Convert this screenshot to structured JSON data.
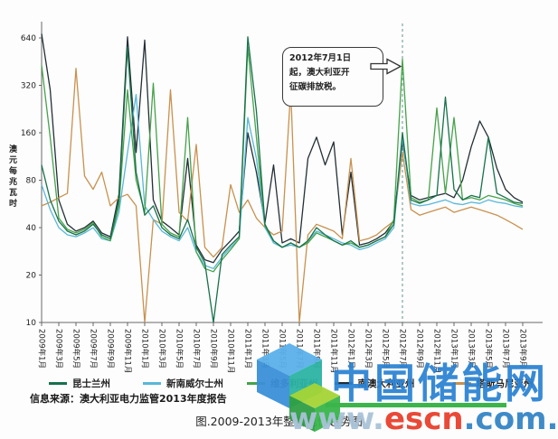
{
  "figure": {
    "y_axis_title": "澳元每兆瓦时",
    "source": "信息来源：澳大利亚电力监管2013年度报告",
    "caption": "图.2009-2013年整售电价趋势图",
    "annotation": {
      "line1": "2012年7月1日",
      "line2": "起，澳大利亚开",
      "line3": "征碳排放税。"
    }
  },
  "legend": {
    "items": [
      {
        "key": "qld",
        "label": "昆士兰州",
        "color": "#17714b"
      },
      {
        "key": "nsw",
        "label": "新南威尔士州",
        "color": "#58b7d8"
      },
      {
        "key": "vic",
        "label": "维多利亚州",
        "color": "#46a24a"
      },
      {
        "key": "sa",
        "label": "南澳大利亚州",
        "color": "#232f36"
      },
      {
        "key": "tas",
        "label": "塔斯马尼亚州",
        "color": "#c8914f"
      }
    ]
  },
  "watermark": {
    "brand": "中国储能网",
    "url_www": "www.",
    "url_escn": "escn",
    "url_tail": ".com.cn",
    "brand_color": "#2a82d2",
    "www_color": "#a9c3d8",
    "escn_color": "#e8402d",
    "tail_color": "#3585c6",
    "underline_color": "#3bb54a"
  },
  "chart_data": {
    "type": "line",
    "title": "2009-2013年整售电价趋势图",
    "ylabel": "澳元每兆瓦时",
    "y_scale": "log2",
    "ylim": [
      10,
      640
    ],
    "y_ticks": [
      10,
      20,
      40,
      80,
      160,
      320,
      640
    ],
    "x_start": "2009-01",
    "x_end": "2013-09",
    "x_interval": "monthly",
    "x_tick_labels": [
      "2009年1月",
      "2009年3月",
      "2009年5月",
      "2009年7月",
      "2009年9月",
      "2009年11月",
      "2010年1月",
      "2010年3月",
      "2010年5月",
      "2010年7月",
      "2010年9月",
      "2010年11月",
      "2011年1月",
      "2011年3月",
      "2011年5月",
      "2011年7月",
      "2011年9月",
      "2011年11月",
      "2012年1月",
      "2012年3月",
      "2012年5月",
      "2012年7月",
      "2012年9月",
      "2012年11月",
      "2013年1月",
      "2013年3月",
      "2013年5月",
      "2013年7月",
      "2013年9月"
    ],
    "event_line": {
      "x": "2012-07",
      "month_index": 42,
      "style": "dashed",
      "color": "#7aa8a2"
    },
    "series": [
      {
        "key": "qld",
        "name": "昆士兰州",
        "color": "#17714b",
        "values": [
          100,
          60,
          44,
          38,
          36,
          38,
          42,
          36,
          34,
          60,
          560,
          90,
          48,
          55,
          40,
          36,
          34,
          45,
          30,
          24,
          10,
          27,
          31,
          35,
          650,
          220,
          42,
          33,
          30,
          32,
          30,
          33,
          40,
          36,
          33,
          31,
          33,
          30,
          31,
          33,
          35,
          42,
          160,
          60,
          57,
          60,
          64,
          270,
          70,
          60,
          64,
          62,
          150,
          66,
          62,
          58,
          57
        ]
      },
      {
        "key": "nsw",
        "name": "新南威尔士州",
        "color": "#58b7d8",
        "values": [
          75,
          52,
          40,
          36,
          35,
          37,
          40,
          34,
          33,
          50,
          120,
          280,
          55,
          45,
          38,
          35,
          33,
          40,
          28,
          23,
          22,
          26,
          30,
          34,
          200,
          110,
          40,
          32,
          30,
          31,
          30,
          33,
          38,
          36,
          34,
          32,
          31,
          29,
          30,
          32,
          34,
          40,
          150,
          57,
          55,
          56,
          58,
          60,
          57,
          56,
          58,
          57,
          60,
          58,
          57,
          55,
          54
        ]
      },
      {
        "key": "vic",
        "name": "维多利亚州",
        "color": "#46a24a",
        "values": [
          430,
          150,
          46,
          39,
          37,
          39,
          43,
          35,
          33,
          55,
          300,
          80,
          50,
          330,
          42,
          37,
          35,
          200,
          28,
          22,
          21,
          25,
          29,
          34,
          560,
          150,
          41,
          33,
          30,
          32,
          30,
          32,
          37,
          35,
          33,
          31,
          32,
          30,
          31,
          33,
          35,
          45,
          470,
          62,
          58,
          60,
          230,
          66,
          200,
          60,
          62,
          60,
          64,
          62,
          60,
          57,
          55
        ]
      },
      {
        "key": "sa",
        "name": "南澳大利亚州",
        "color": "#232f36",
        "values": [
          680,
          300,
          60,
          42,
          38,
          40,
          44,
          37,
          35,
          65,
          650,
          120,
          620,
          60,
          44,
          40,
          36,
          110,
          31,
          25,
          24,
          29,
          33,
          38,
          160,
          90,
          43,
          100,
          32,
          34,
          32,
          110,
          150,
          100,
          140,
          36,
          90,
          31,
          32,
          34,
          37,
          44,
          140,
          64,
          60,
          62,
          64,
          66,
          62,
          80,
          130,
          190,
          150,
          95,
          70,
          62,
          58
        ]
      },
      {
        "key": "tas",
        "name": "塔斯马尼亚州",
        "color": "#c8914f",
        "values": [
          55,
          58,
          62,
          66,
          410,
          85,
          70,
          90,
          55,
          62,
          65,
          55,
          10,
          45,
          42,
          300,
          50,
          44,
          135,
          30,
          26,
          30,
          75,
          50,
          60,
          46,
          40,
          36,
          38,
          300,
          10,
          36,
          42,
          40,
          38,
          34,
          110,
          33,
          34,
          36,
          40,
          44,
          120,
          52,
          48,
          50,
          52,
          54,
          50,
          52,
          54,
          52,
          50,
          48,
          45,
          42,
          39
        ]
      }
    ]
  }
}
